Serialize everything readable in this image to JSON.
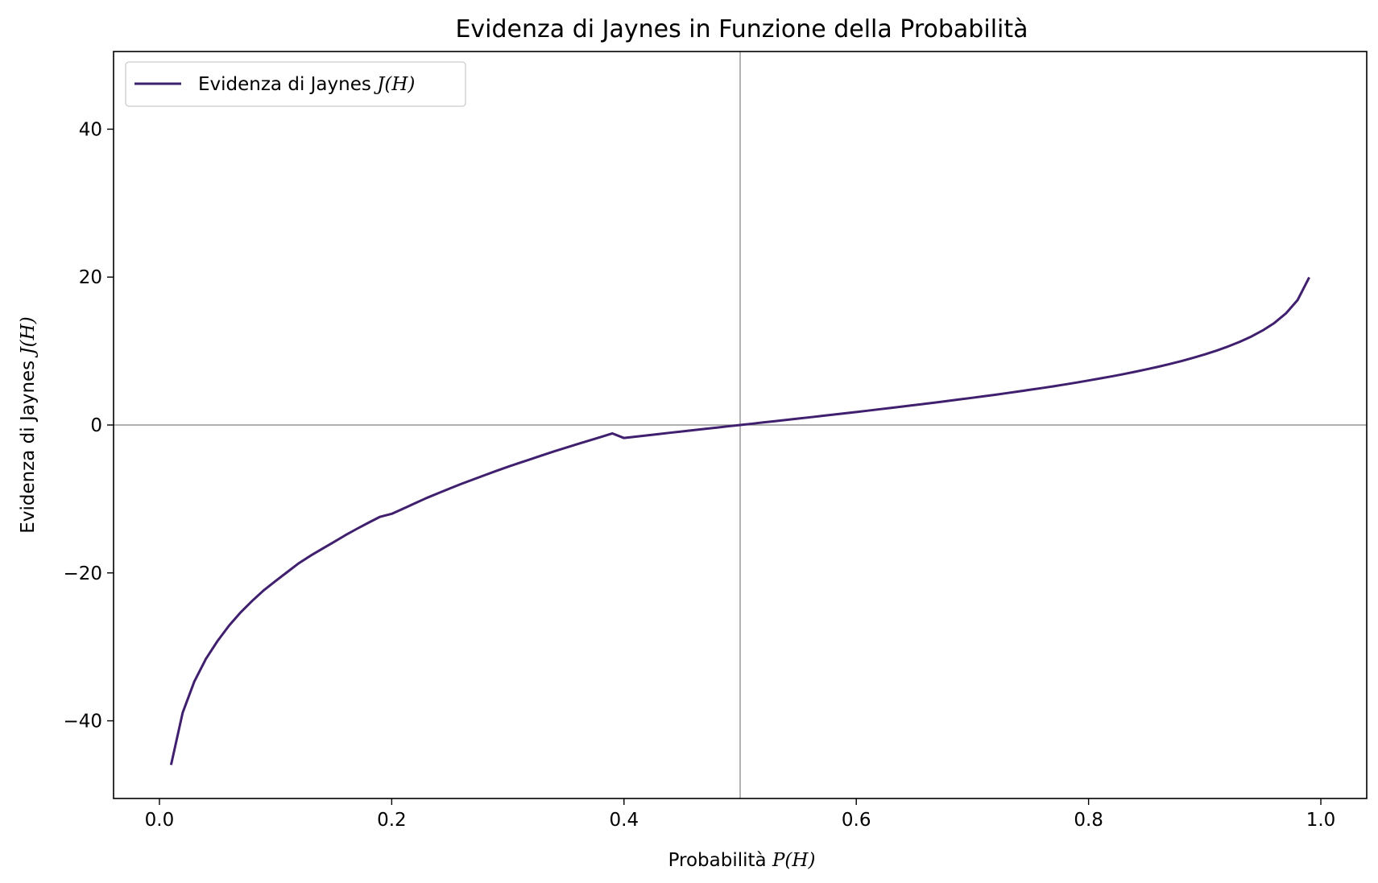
{
  "chart_data": {
    "type": "line",
    "title": "Evidenza di Jaynes in Funzione della Probabilità",
    "xlabel_prefix": "Probabilità ",
    "xlabel_math": "P(H)",
    "ylabel_prefix": "Evidenza di Jaynes ",
    "ylabel_math": "J(H)",
    "xlim": [
      -0.0395,
      1.0395
    ],
    "ylim": [
      -50.5,
      50.5
    ],
    "x_ticks": [
      0.0,
      0.2,
      0.4,
      0.6,
      0.8,
      1.0
    ],
    "x_tick_labels": [
      "0.0",
      "0.2",
      "0.4",
      "0.6",
      "0.8",
      "1.0"
    ],
    "y_ticks": [
      -40,
      -20,
      0,
      20,
      40
    ],
    "y_tick_labels": [
      "−40",
      "−20",
      "0",
      "20",
      "40"
    ],
    "reference_lines": {
      "h": 0,
      "v": 0.5,
      "color": "#808080"
    },
    "legend": {
      "placement": "upper left",
      "prefix": "Evidenza di Jaynes ",
      "math": "J(H)"
    },
    "series": [
      {
        "name": "Evidenza di Jaynes J(H)",
        "color": "#3f1f6e",
        "x": [
          0.01,
          0.02,
          0.03,
          0.04,
          0.05,
          0.06,
          0.07,
          0.08,
          0.09,
          0.1,
          0.11,
          0.12,
          0.13,
          0.14,
          0.15,
          0.16,
          0.17,
          0.18,
          0.19,
          0.2,
          0.21,
          0.22,
          0.23,
          0.24,
          0.25,
          0.26,
          0.27,
          0.28,
          0.29,
          0.3,
          0.31,
          0.32,
          0.33,
          0.34,
          0.35,
          0.36,
          0.37,
          0.38,
          0.39,
          0.4,
          0.41,
          0.42,
          0.43,
          0.44,
          0.45,
          0.46,
          0.47,
          0.48,
          0.49,
          0.5,
          0.51,
          0.52,
          0.53,
          0.54,
          0.55,
          0.56,
          0.57,
          0.58,
          0.59,
          0.6,
          0.61,
          0.62,
          0.63,
          0.64,
          0.65,
          0.66,
          0.67,
          0.68,
          0.69,
          0.7,
          0.71,
          0.72,
          0.73,
          0.74,
          0.75,
          0.76,
          0.77,
          0.78,
          0.79,
          0.8,
          0.81,
          0.82,
          0.83,
          0.84,
          0.85,
          0.86,
          0.87,
          0.88,
          0.89,
          0.9,
          0.91,
          0.92,
          0.93,
          0.94,
          0.95,
          0.96,
          0.97,
          0.98,
          0.99
        ],
        "y": [
          -45.96,
          -38.9,
          -34.7,
          -31.62,
          -29.21,
          -27.11,
          -25.32,
          -23.76,
          -22.33,
          -21.09,
          -19.89,
          -18.69,
          -17.68,
          -16.75,
          -15.84,
          -14.91,
          -14.04,
          -13.21,
          -12.41,
          -12.01,
          -11.31,
          -10.58,
          -9.87,
          -9.22,
          -8.58,
          -7.96,
          -7.37,
          -6.79,
          -6.21,
          -5.65,
          -5.12,
          -4.6,
          -4.07,
          -3.56,
          -3.07,
          -2.58,
          -2.1,
          -1.62,
          -1.14,
          -1.76,
          -1.58,
          -1.4,
          -1.22,
          -1.04,
          -0.87,
          -0.69,
          -0.52,
          -0.35,
          -0.17,
          0.0,
          0.17,
          0.35,
          0.52,
          0.69,
          0.87,
          1.04,
          1.22,
          1.4,
          1.58,
          1.76,
          1.94,
          2.13,
          2.31,
          2.5,
          2.69,
          2.88,
          3.08,
          3.28,
          3.48,
          3.68,
          3.89,
          4.1,
          4.32,
          4.54,
          4.77,
          5.0,
          5.24,
          5.49,
          5.75,
          6.02,
          6.3,
          6.58,
          6.88,
          7.2,
          7.53,
          7.88,
          8.25,
          8.65,
          9.08,
          9.54,
          10.05,
          10.61,
          11.24,
          11.95,
          12.79,
          13.8,
          15.1,
          16.9,
          19.96
        ]
      }
    ]
  }
}
